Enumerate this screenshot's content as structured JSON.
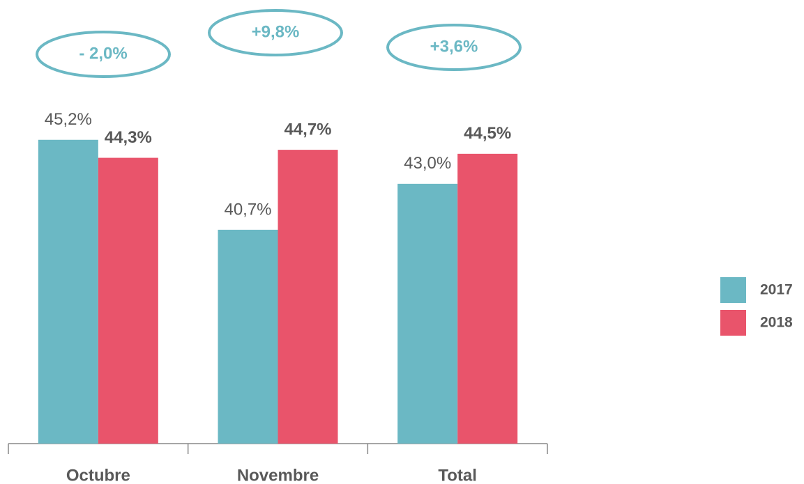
{
  "chart_data": {
    "type": "bar",
    "categories": [
      "Octubre",
      "Novembre",
      "Total"
    ],
    "series": [
      {
        "name": "2017",
        "color": "#6bb8c4",
        "values": [
          45.2,
          40.7,
          43.0
        ],
        "value_labels": [
          "45,2%",
          "40,7%",
          "43,0%"
        ]
      },
      {
        "name": "2018",
        "color": "#e9546b",
        "values": [
          44.3,
          44.7,
          44.5
        ],
        "value_labels": [
          "44,3%",
          "44,7%",
          "44,5%"
        ]
      }
    ],
    "annotations": [
      "- 2,0%",
      "+9,8%",
      "+3,6%"
    ],
    "ylim": [
      30,
      50
    ],
    "legend": "right"
  }
}
